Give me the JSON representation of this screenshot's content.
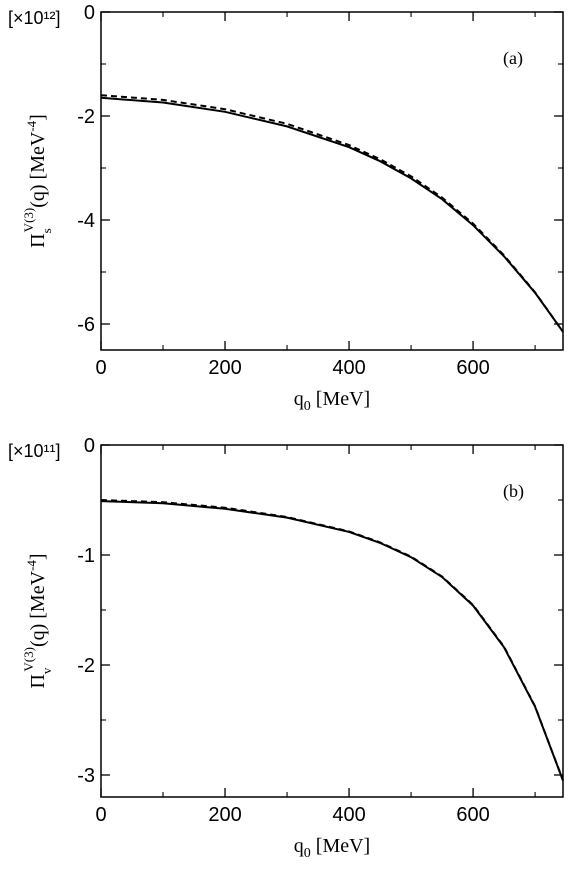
{
  "chart_data": [
    {
      "type": "line",
      "panel_label": "(a)",
      "scale_label": "[×10¹²]",
      "xlabel": {
        "main": "q",
        "sub": "0",
        "unit": " [MeV]"
      },
      "ylabel": {
        "main": "Π",
        "sub": "s",
        "sup": "V(3)",
        "arg": "(q) [MeV",
        "exp": "-4",
        "close": "]"
      },
      "xlim": [
        0,
        745
      ],
      "ylim": [
        -6.5,
        0
      ],
      "xticks": [
        0,
        200,
        400,
        600
      ],
      "xtick_labels": [
        "0",
        "200",
        "400",
        "600"
      ],
      "yticks": [
        0,
        -2,
        -4,
        -6
      ],
      "ytick_labels": [
        "0",
        "-2",
        "-4",
        "-6"
      ],
      "series": [
        {
          "style": "solid",
          "color": "#000000",
          "x": [
            0,
            100,
            200,
            300,
            400,
            450,
            500,
            550,
            600,
            650,
            700,
            745
          ],
          "y": [
            -1.65,
            -1.74,
            -1.92,
            -2.2,
            -2.6,
            -2.87,
            -3.2,
            -3.6,
            -4.1,
            -4.7,
            -5.4,
            -6.15
          ]
        },
        {
          "style": "dashed",
          "color": "#000000",
          "x": [
            0,
            100,
            200,
            300,
            400,
            450,
            500,
            550,
            600,
            650,
            700,
            745
          ],
          "y": [
            -1.6,
            -1.69,
            -1.87,
            -2.15,
            -2.56,
            -2.83,
            -3.16,
            -3.57,
            -4.07,
            -4.68,
            -5.39,
            -6.15
          ]
        }
      ]
    },
    {
      "type": "line",
      "panel_label": "(b)",
      "scale_label": "[×10¹¹]",
      "xlabel": {
        "main": "q",
        "sub": "0",
        "unit": " [MeV]"
      },
      "ylabel": {
        "main": "Π",
        "sub": "v",
        "sup": "V(3)",
        "arg": "(q) [MeV",
        "exp": "-4",
        "close": "]"
      },
      "xlim": [
        0,
        745
      ],
      "ylim": [
        -3.2,
        0
      ],
      "xticks": [
        0,
        200,
        400,
        600
      ],
      "xtick_labels": [
        "0",
        "200",
        "400",
        "600"
      ],
      "yticks": [
        0,
        -1,
        -2,
        -3
      ],
      "ytick_labels": [
        "0",
        "-1",
        "-2",
        "-3"
      ],
      "series": [
        {
          "style": "solid",
          "color": "#000000",
          "x": [
            0,
            100,
            200,
            300,
            400,
            450,
            500,
            550,
            600,
            650,
            700,
            745
          ],
          "y": [
            -0.51,
            -0.53,
            -0.58,
            -0.66,
            -0.79,
            -0.89,
            -1.02,
            -1.2,
            -1.46,
            -1.84,
            -2.38,
            -3.05
          ]
        },
        {
          "style": "dashed",
          "color": "#000000",
          "x": [
            0,
            100,
            200,
            300,
            400,
            450,
            500,
            550,
            600,
            650,
            700,
            745
          ],
          "y": [
            -0.5,
            -0.52,
            -0.57,
            -0.655,
            -0.785,
            -0.885,
            -1.015,
            -1.195,
            -1.455,
            -1.835,
            -2.375,
            -3.05
          ]
        }
      ]
    }
  ]
}
